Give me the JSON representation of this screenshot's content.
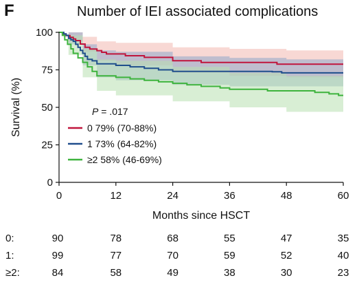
{
  "panel_letter": "F",
  "chart_data": {
    "type": "line",
    "title": "Number of IEI associated complications",
    "xlabel": "Months since HSCT",
    "ylabel": "Survival (%)",
    "xlim": [
      0,
      60
    ],
    "ylim": [
      0,
      100
    ],
    "xticks": [
      0,
      12,
      24,
      36,
      48,
      60
    ],
    "yticks": [
      0,
      25,
      50,
      75,
      100
    ],
    "xtick_labels": [
      "0",
      "12",
      "24",
      "36",
      "48",
      "60"
    ],
    "ytick_labels": [
      "0",
      "25",
      "50",
      "75",
      "100"
    ],
    "annotation": {
      "italic": "P",
      "text": " = .017"
    },
    "legend_placement": "lower-left",
    "series": [
      {
        "name": "0",
        "legend_label": "0 79% (70-88%)",
        "color": "#c0143c",
        "band_color": "#f2b8b0",
        "points": [
          [
            0,
            100
          ],
          [
            0.8,
            98.9
          ],
          [
            1.5,
            97.8
          ],
          [
            2.3,
            96.7
          ],
          [
            3.0,
            95.6
          ],
          [
            3.5,
            94.5
          ],
          [
            4.5,
            92.2
          ],
          [
            5.5,
            90.0
          ],
          [
            6.5,
            88.9
          ],
          [
            8,
            87.8
          ],
          [
            9,
            86.7
          ],
          [
            10,
            85.6
          ],
          [
            14,
            84.4
          ],
          [
            18,
            83.3
          ],
          [
            24,
            81.1
          ],
          [
            30,
            79.9
          ],
          [
            46,
            78.8
          ],
          [
            60,
            78.8
          ]
        ],
        "lower": [
          [
            0,
            100
          ],
          [
            2,
            94
          ],
          [
            5,
            87
          ],
          [
            8,
            81
          ],
          [
            12,
            78
          ],
          [
            24,
            73
          ],
          [
            36,
            71
          ],
          [
            48,
            70
          ],
          [
            60,
            70
          ]
        ],
        "upper": [
          [
            0,
            100
          ],
          [
            2,
            100
          ],
          [
            5,
            97
          ],
          [
            8,
            94
          ],
          [
            12,
            93
          ],
          [
            24,
            90
          ],
          [
            36,
            89
          ],
          [
            48,
            88
          ],
          [
            60,
            88
          ]
        ]
      },
      {
        "name": "1",
        "legend_label": "1 73% (64-82%)",
        "color": "#1f4e8c",
        "band_color": "#8fa8c8",
        "points": [
          [
            0,
            100
          ],
          [
            1,
            99
          ],
          [
            1.5,
            98
          ],
          [
            2,
            96
          ],
          [
            2.5,
            95
          ],
          [
            3,
            94
          ],
          [
            3.5,
            92
          ],
          [
            4,
            90
          ],
          [
            4.5,
            88
          ],
          [
            5,
            86
          ],
          [
            5.5,
            84
          ],
          [
            6,
            82
          ],
          [
            7,
            81
          ],
          [
            8,
            79
          ],
          [
            12,
            78
          ],
          [
            15,
            77
          ],
          [
            18,
            76
          ],
          [
            21,
            75
          ],
          [
            24,
            74
          ],
          [
            36,
            74
          ],
          [
            45,
            73.7
          ],
          [
            47,
            73
          ],
          [
            60,
            73
          ]
        ],
        "lower": [
          [
            0,
            100
          ],
          [
            2,
            92
          ],
          [
            5,
            78
          ],
          [
            8,
            70
          ],
          [
            12,
            68
          ],
          [
            24,
            65
          ],
          [
            36,
            64
          ],
          [
            48,
            64
          ],
          [
            60,
            64
          ]
        ],
        "upper": [
          [
            0,
            100
          ],
          [
            2,
            100
          ],
          [
            5,
            92
          ],
          [
            8,
            88
          ],
          [
            12,
            87
          ],
          [
            24,
            84
          ],
          [
            36,
            83
          ],
          [
            48,
            82
          ],
          [
            60,
            82
          ]
        ]
      },
      {
        "name": "≥2",
        "legend_label": "≥2 58% (46-69%)",
        "color": "#3db33d",
        "band_color": "#b8e0b0",
        "points": [
          [
            0,
            100
          ],
          [
            0.7,
            98
          ],
          [
            1.2,
            95
          ],
          [
            1.8,
            92
          ],
          [
            2.5,
            89
          ],
          [
            3,
            86
          ],
          [
            4,
            83
          ],
          [
            5,
            80
          ],
          [
            6,
            77
          ],
          [
            7,
            74
          ],
          [
            8,
            71
          ],
          [
            12,
            70
          ],
          [
            15,
            69
          ],
          [
            18,
            68
          ],
          [
            21,
            67
          ],
          [
            24,
            66
          ],
          [
            27,
            65
          ],
          [
            30,
            64
          ],
          [
            34,
            63
          ],
          [
            36,
            62
          ],
          [
            44,
            61
          ],
          [
            48,
            61
          ],
          [
            54,
            60
          ],
          [
            57,
            59
          ],
          [
            59,
            58
          ],
          [
            60,
            58
          ]
        ],
        "lower": [
          [
            0,
            100
          ],
          [
            2,
            85
          ],
          [
            5,
            70
          ],
          [
            8,
            61
          ],
          [
            12,
            58
          ],
          [
            24,
            54
          ],
          [
            36,
            50
          ],
          [
            48,
            47
          ],
          [
            60,
            46
          ]
        ],
        "upper": [
          [
            0,
            100
          ],
          [
            2,
            98
          ],
          [
            5,
            89
          ],
          [
            8,
            82
          ],
          [
            12,
            81
          ],
          [
            24,
            77
          ],
          [
            36,
            73
          ],
          [
            48,
            71
          ],
          [
            60,
            69
          ]
        ]
      }
    ],
    "risk_table": {
      "times": [
        0,
        12,
        24,
        36,
        48,
        60
      ],
      "rows": [
        {
          "label": "0:",
          "values": [
            "90",
            "78",
            "68",
            "55",
            "47",
            "35"
          ]
        },
        {
          "label": "1:",
          "values": [
            "99",
            "77",
            "70",
            "59",
            "52",
            "40"
          ]
        },
        {
          "label": "≥2:",
          "values": [
            "84",
            "58",
            "49",
            "38",
            "30",
            "23"
          ]
        }
      ]
    }
  }
}
